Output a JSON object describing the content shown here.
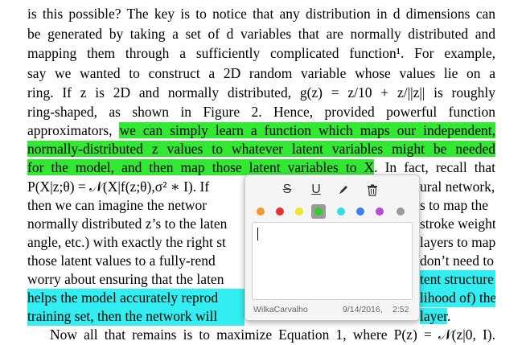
{
  "document": {
    "lines": [
      {
        "text": "is this possible? The key is to notice that any distribution in d dimensions can",
        "hl": ""
      },
      {
        "text": "be generated by taking a set of d variables that are normally distributed and",
        "hl": ""
      },
      {
        "text": "mapping them through a sufficiently complicated function¹. For example,",
        "hl": ""
      },
      {
        "text": "say we wanted to construct a 2D random variable whose values lie on a",
        "hl": ""
      },
      {
        "text": "ring. If z is 2D and normally distributed, g(z) = z/10 + z/||z|| is roughly",
        "hl": ""
      },
      {
        "text": "ring-shaped, as shown in Figure 2. Hence, provided powerful function",
        "hl": ""
      },
      {
        "text_before": "approximators, ",
        "text_hl": "we can simply learn a function which maps our independent,",
        "hl": "green"
      },
      {
        "text_hl": "normally-distributed z values to whatever latent variables might be needed",
        "hl": "green"
      },
      {
        "text_hl": "for the model, and then map those latent variables to X",
        "text_after": ". In fact, recall that",
        "hl": "green"
      },
      {
        "text": "P(X|z;θ) = 𝒩(X|f(z;θ),σ² ∗ I). If",
        "text_right": "ural network,",
        "hl": ""
      },
      {
        "text": "then we can imagine the networ",
        "text_right": "s to map the",
        "hl": ""
      },
      {
        "text": "normally distributed z’s to the laten",
        "text_right": "stroke weight,",
        "hl": ""
      },
      {
        "text": "angle, etc.) with exactly the right st",
        "text_right": "layers to map",
        "hl": ""
      },
      {
        "text": "those latent values to a fully-rend",
        "text_right": "don’t need to",
        "hl": ""
      },
      {
        "text": "worry about ensuring that the laten",
        "text_right_hl": "tent structure",
        "hl": "cyan-right"
      },
      {
        "text_hl": "helps the model accurately reprod",
        "text_right_hl": "lihood of) the",
        "hl": "cyan"
      },
      {
        "text_hl": "training set, then the network will",
        "text_right_hl": "layer",
        "text_after": ".",
        "hl": "cyan"
      },
      {
        "text": "Now all that remains is to maximize Equation 1, where P(z) = 𝒩(z|0, I).",
        "hl": ""
      }
    ]
  },
  "popup": {
    "tools": {
      "strike": "S",
      "underline": "U",
      "pen": "pen-icon",
      "trash": "trash-icon"
    },
    "colors": [
      "#f39a2e",
      "#e93030",
      "#f2e32c",
      "#33cc33",
      "#33dfe6",
      "#3b7ff0",
      "#b84ad6",
      "#9a9a9a"
    ],
    "selected_color_index": 3,
    "note_text": "",
    "author": "WilkaCarvalho",
    "date": "9/14/2016,",
    "time": "2:52"
  }
}
